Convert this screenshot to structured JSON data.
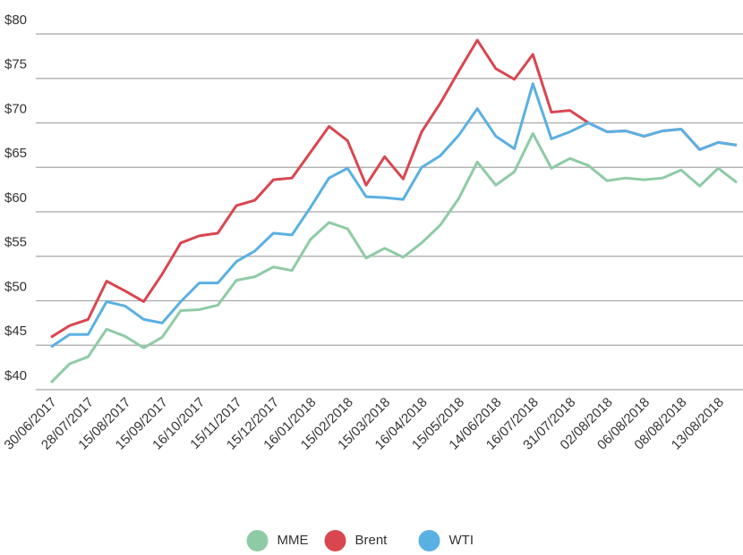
{
  "chart_data": {
    "type": "line",
    "categories": [
      "30/06/2017",
      null,
      "28/07/2017",
      null,
      "15/08/2017",
      null,
      "15/09/2017",
      null,
      "16/10/2017",
      null,
      "15/11/2017",
      null,
      "15/12/2017",
      null,
      "16/01/2018",
      null,
      "15/02/2018",
      null,
      "15/03/2018",
      null,
      "16/04/2018",
      null,
      "15/05/2018",
      null,
      "14/06/2018",
      null,
      "16/07/2018",
      null,
      "31/07/2018",
      null,
      "02/08/2018",
      null,
      "06/08/2018",
      null,
      "08/08/2018",
      null,
      "13/08/2018",
      null
    ],
    "series": [
      {
        "name": "MME",
        "color": "#8ecba5",
        "values": [
          40.8,
          42.9,
          43.7,
          46.8,
          46.0,
          44.7,
          45.9,
          48.9,
          49.0,
          49.5,
          52.3,
          52.7,
          53.8,
          53.4,
          56.9,
          58.8,
          58.1,
          54.8,
          55.9,
          54.9,
          56.5,
          58.5,
          61.5,
          65.6,
          63.0,
          64.5,
          68.8,
          64.9,
          66.0,
          65.2,
          63.5,
          63.8,
          63.6,
          63.8,
          64.7,
          62.9,
          64.9,
          63.3
        ]
      },
      {
        "name": "Brent",
        "color": "#d9464f",
        "values": [
          45.9,
          47.2,
          47.9,
          52.2,
          51.1,
          49.9,
          53.0,
          56.5,
          57.3,
          57.6,
          60.7,
          61.3,
          63.6,
          63.8,
          66.7,
          69.6,
          68.0,
          63.0,
          66.2,
          63.7,
          69.0,
          72.2,
          75.8,
          79.3,
          76.1,
          74.9,
          77.7,
          71.2,
          71.4,
          70.0,
          69.0,
          69.1,
          68.5,
          69.1,
          69.3,
          67.0,
          67.8,
          67.5
        ]
      },
      {
        "name": "WTI",
        "color": "#5ab0e2",
        "values": [
          44.8,
          46.2,
          46.2,
          49.9,
          49.4,
          47.9,
          47.5,
          49.9,
          52.0,
          52.0,
          54.4,
          55.6,
          57.6,
          57.4,
          60.5,
          63.8,
          64.9,
          61.7,
          61.6,
          61.4,
          65.0,
          66.3,
          68.6,
          71.6,
          68.5,
          67.1,
          74.4,
          68.2,
          69.0,
          70.0,
          69.0,
          69.1,
          68.5,
          69.1,
          69.3,
          67.0,
          67.8,
          67.5
        ]
      }
    ],
    "ylim": [
      40,
      80
    ],
    "yticks": [
      {
        "value": 40,
        "label": "$40"
      },
      {
        "value": 45,
        "label": "$45"
      },
      {
        "value": 50,
        "label": "$50"
      },
      {
        "value": 55,
        "label": "$55"
      },
      {
        "value": 60,
        "label": "$60"
      },
      {
        "value": 65,
        "label": "$65"
      },
      {
        "value": 70,
        "label": "$70"
      },
      {
        "value": 75,
        "label": "$75"
      },
      {
        "value": 80,
        "label": "$80"
      }
    ],
    "grid": true,
    "legend": "bottom"
  }
}
